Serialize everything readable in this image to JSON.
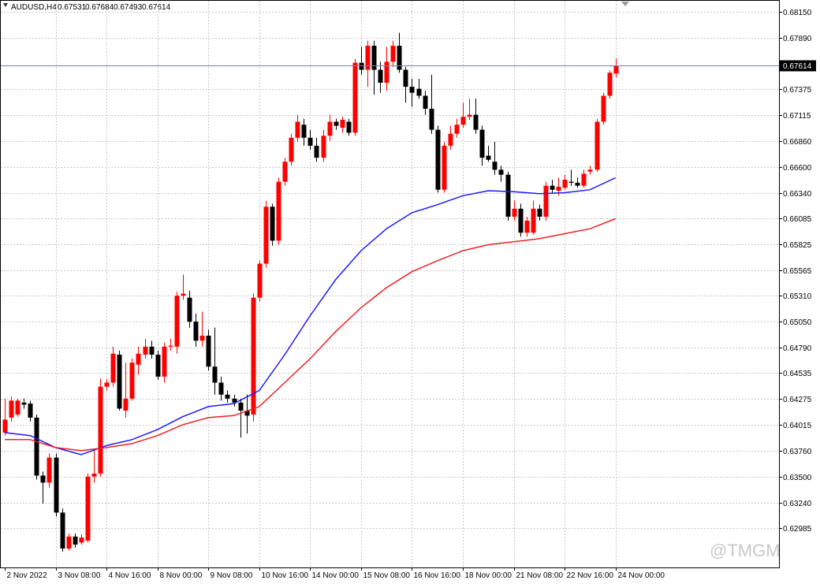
{
  "chart_data": {
    "type": "candlestick",
    "symbol": "AUDUSD,H4",
    "watermark": "@TMGM",
    "bull_color": "#ff0000",
    "bear_color": "#000000",
    "grid": true,
    "ylim": [
      0.62591,
      0.68268
    ],
    "yticks": [
      {
        "value": 0.6815,
        "label": "0.68150"
      },
      {
        "value": 0.6789,
        "label": "0.67890"
      },
      0.67375,
      0.67115,
      {
        "value": 0.6686,
        "label": "0.66860"
      },
      {
        "value": 0.666,
        "label": "0.66600"
      },
      {
        "value": 0.6634,
        "label": "0.66340"
      },
      0.66085,
      0.65825,
      0.65565,
      {
        "value": 0.6531,
        "label": "0.65310"
      },
      {
        "value": 0.6505,
        "label": "0.65050"
      },
      {
        "value": 0.6479,
        "label": "0.64790"
      },
      0.64535,
      0.64275,
      0.64015,
      {
        "value": 0.6376,
        "label": "0.63760"
      },
      {
        "value": 0.635,
        "label": "0.63500"
      },
      {
        "value": 0.6324,
        "label": "0.63240"
      },
      0.62985
    ],
    "categories": [
      "2 Nov 2022",
      null,
      null,
      null,
      null,
      null,
      null,
      null,
      "3 Nov 08:00",
      null,
      null,
      null,
      null,
      null,
      null,
      null,
      "4 Nov 16:00",
      null,
      null,
      null,
      null,
      null,
      null,
      null,
      "8 Nov 00:00",
      null,
      null,
      null,
      null,
      null,
      null,
      null,
      "9 Nov 08:00",
      null,
      null,
      null,
      null,
      null,
      null,
      null,
      "10 Nov 16:00",
      null,
      null,
      null,
      null,
      null,
      null,
      null,
      "14 Nov 00:00",
      null,
      null,
      null,
      null,
      null,
      null,
      null,
      "15 Nov 08:00",
      null,
      null,
      null,
      null,
      null,
      null,
      null,
      "16 Nov 16:00",
      null,
      null,
      null,
      null,
      null,
      null,
      null,
      "18 Nov 00:00",
      null,
      null,
      null,
      null,
      null,
      null,
      null,
      "21 Nov 08:00",
      null,
      null,
      null,
      null,
      null,
      null,
      null,
      "22 Nov 16:00",
      null,
      null,
      null,
      null,
      null,
      null,
      null,
      "24 Nov 00:00"
    ],
    "open": [
      0.6394,
      0.6409,
      0.6412,
      0.6424,
      0.6423,
      0.6409,
      0.6351,
      0.6344,
      0.6369,
      0.6314,
      0.6278,
      0.629,
      0.6284,
      0.6286,
      0.635,
      0.6353,
      0.644,
      0.6444,
      0.6472,
      0.6416,
      0.6428,
      0.6462,
      0.6472,
      0.648,
      0.6472,
      0.645,
      0.648,
      0.648,
      0.6531,
      0.6529,
      0.6505,
      0.6486,
      0.6491,
      0.646,
      0.6444,
      0.6432,
      0.6428,
      0.6424,
      0.6416,
      0.6412,
      0.6529,
      0.6563,
      0.662,
      0.6586,
      0.6645,
      0.6665,
      0.6689,
      0.6702,
      0.6689,
      0.6681,
      0.6669,
      0.6691,
      0.6705,
      0.6699,
      0.6705,
      0.6694,
      0.6764,
      0.6757,
      0.6781,
      0.6757,
      0.6744,
      0.6765,
      0.6781,
      0.6757,
      0.674,
      0.6738,
      0.6731,
      0.6718,
      0.6697,
      0.6637,
      0.6681,
      0.6693,
      0.6702,
      0.671,
      0.6712,
      0.6697,
      0.6671,
      0.6665,
      0.6657,
      0.6652,
      0.661,
      0.6618,
      0.6594,
      0.6594,
      0.6618,
      0.661,
      0.6641,
      0.6636,
      0.6639,
      0.6645,
      0.6644,
      0.6641,
      0.6655,
      0.6657,
      0.6705,
      0.6731,
      0.67531
    ],
    "high": [
      0.6428,
      0.643,
      0.6428,
      0.6428,
      0.6426,
      0.6412,
      0.6355,
      0.6373,
      0.6373,
      0.6318,
      0.6293,
      0.6293,
      0.6292,
      0.6353,
      0.6377,
      0.6448,
      0.6448,
      0.648,
      0.6476,
      0.6464,
      0.6468,
      0.648,
      0.6488,
      0.6486,
      0.6476,
      0.6484,
      0.6488,
      0.6535,
      0.6552,
      0.6536,
      0.6513,
      0.6515,
      0.6497,
      0.6499,
      0.645,
      0.6436,
      0.6432,
      0.6428,
      0.6432,
      0.6533,
      0.6566,
      0.6626,
      0.6623,
      0.6649,
      0.6669,
      0.6693,
      0.6712,
      0.6708,
      0.6697,
      0.6689,
      0.6697,
      0.6712,
      0.6708,
      0.671,
      0.6708,
      0.6768,
      0.678,
      0.6786,
      0.6786,
      0.6765,
      0.678,
      0.6786,
      0.6794,
      0.676,
      0.6748,
      0.6748,
      0.6736,
      0.6752,
      0.6701,
      0.6685,
      0.6701,
      0.6708,
      0.6724,
      0.6728,
      0.6728,
      0.6701,
      0.6681,
      0.6685,
      0.6661,
      0.6655,
      0.6626,
      0.6623,
      0.661,
      0.6626,
      0.6622,
      0.6645,
      0.6647,
      0.6649,
      0.6652,
      0.6657,
      0.6649,
      0.6657,
      0.6661,
      0.6708,
      0.6734,
      0.6756,
      0.67684
    ],
    "low": [
      0.6391,
      0.6405,
      0.641,
      0.6418,
      0.6405,
      0.6347,
      0.6323,
      0.6339,
      0.631,
      0.6275,
      0.6276,
      0.6279,
      0.6282,
      0.6284,
      0.6344,
      0.635,
      0.6436,
      0.644,
      0.6416,
      0.6409,
      0.6426,
      0.6452,
      0.6468,
      0.6468,
      0.6447,
      0.6444,
      0.6476,
      0.6473,
      0.6527,
      0.6499,
      0.648,
      0.648,
      0.6456,
      0.6432,
      0.6426,
      0.6424,
      0.642,
      0.6389,
      0.6393,
      0.6405,
      0.6525,
      0.6559,
      0.6581,
      0.6582,
      0.6641,
      0.6661,
      0.6685,
      0.6681,
      0.6677,
      0.6665,
      0.6665,
      0.6686,
      0.6697,
      0.6694,
      0.6691,
      0.6691,
      0.6752,
      0.674,
      0.6732,
      0.6734,
      0.6736,
      0.676,
      0.6754,
      0.6724,
      0.672,
      0.6728,
      0.6712,
      0.6693,
      0.6634,
      0.6634,
      0.6677,
      0.6689,
      0.6699,
      0.6707,
      0.6693,
      0.6661,
      0.6665,
      0.6652,
      0.6645,
      0.6606,
      0.6606,
      0.659,
      0.659,
      0.6592,
      0.6606,
      0.6606,
      0.6634,
      0.6631,
      0.6637,
      0.6641,
      0.6639,
      0.6639,
      0.6652,
      0.6655,
      0.6702,
      0.6728,
      0.67493
    ],
    "close": [
      0.6407,
      0.6426,
      0.6426,
      0.6422,
      0.6409,
      0.6351,
      0.6344,
      0.6369,
      0.6314,
      0.6278,
      0.629,
      0.6282,
      0.6289,
      0.635,
      0.6353,
      0.644,
      0.6444,
      0.6473,
      0.6418,
      0.6428,
      0.6464,
      0.6473,
      0.648,
      0.6472,
      0.645,
      0.648,
      0.6481,
      0.6531,
      0.6533,
      0.6505,
      0.6486,
      0.6491,
      0.646,
      0.6444,
      0.6432,
      0.6428,
      0.6424,
      0.6416,
      0.6411,
      0.6529,
      0.6563,
      0.662,
      0.6586,
      0.6645,
      0.6665,
      0.6689,
      0.6705,
      0.6689,
      0.6681,
      0.6669,
      0.6691,
      0.6705,
      0.6701,
      0.6707,
      0.6694,
      0.6764,
      0.6757,
      0.6781,
      0.6757,
      0.6744,
      0.6765,
      0.6781,
      0.6757,
      0.674,
      0.6734,
      0.6731,
      0.6718,
      0.6697,
      0.6637,
      0.6681,
      0.6693,
      0.6702,
      0.671,
      0.6712,
      0.6697,
      0.6669,
      0.6667,
      0.6657,
      0.6652,
      0.661,
      0.6618,
      0.6594,
      0.6606,
      0.6618,
      0.661,
      0.6641,
      0.6637,
      0.664,
      0.6647,
      0.6644,
      0.6641,
      0.6653,
      0.6657,
      0.6705,
      0.6731,
      0.6754,
      0.67614
    ],
    "overlays": [
      {
        "type": "line",
        "color": "#1a1aff",
        "x": [
          0,
          4,
          8,
          12,
          16,
          20,
          24,
          28,
          32,
          36,
          40,
          44,
          48,
          52,
          56,
          60,
          64,
          68,
          72,
          76,
          80,
          84,
          88,
          92,
          96
        ],
        "values": [
          0.6394,
          0.6391,
          0.6379,
          0.6372,
          0.6381,
          0.6387,
          0.6397,
          0.641,
          0.642,
          0.6423,
          0.6436,
          0.6472,
          0.6511,
          0.6547,
          0.6576,
          0.6598,
          0.6614,
          0.6622,
          0.6631,
          0.6636,
          0.6635,
          0.6633,
          0.6634,
          0.6637,
          0.6649
        ]
      },
      {
        "type": "line",
        "color": "#ee2222",
        "x": [
          0,
          4,
          8,
          12,
          16,
          20,
          24,
          28,
          32,
          36,
          40,
          44,
          48,
          52,
          56,
          60,
          64,
          68,
          72,
          76,
          80,
          84,
          88,
          92,
          96
        ],
        "values": [
          0.6387,
          0.6387,
          0.6379,
          0.6376,
          0.6379,
          0.6383,
          0.6391,
          0.6402,
          0.6409,
          0.6411,
          0.642,
          0.6444,
          0.6468,
          0.6495,
          0.6519,
          0.6539,
          0.6555,
          0.6566,
          0.6576,
          0.6582,
          0.6585,
          0.6588,
          0.6593,
          0.6598,
          0.6608
        ]
      }
    ]
  }
}
